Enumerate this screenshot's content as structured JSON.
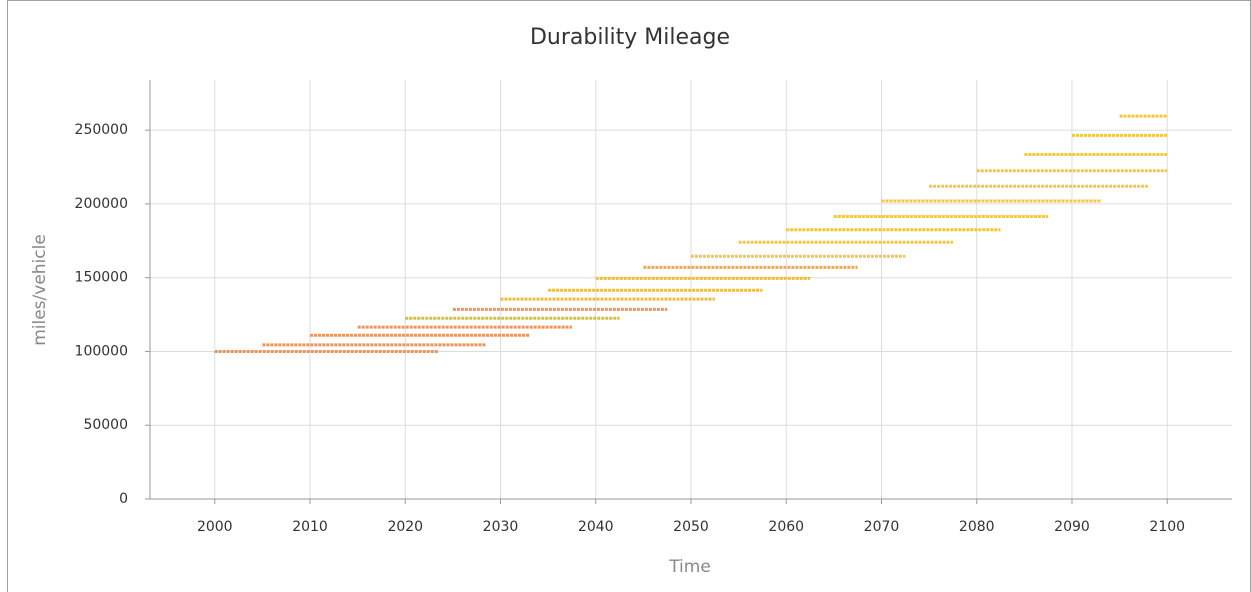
{
  "chart_data": {
    "type": "line",
    "title": "Durability Mileage",
    "x_label": "Time",
    "y_label": "miles/vehicle",
    "xlim": [
      1993.2,
      2106.8
    ],
    "ylim": [
      0,
      284000
    ],
    "xticks": [
      2000,
      2010,
      2020,
      2030,
      2040,
      2050,
      2060,
      2070,
      2080,
      2090,
      2100
    ],
    "yticks": [
      0,
      50000,
      100000,
      150000,
      200000,
      250000
    ],
    "grid": true,
    "series": [
      {
        "color": "#f0935a",
        "x": [
          2000,
          2023.5
        ],
        "values": [
          100000,
          100000
        ]
      },
      {
        "color": "#f0935a",
        "x": [
          2005,
          2028.5
        ],
        "values": [
          104500,
          104500
        ]
      },
      {
        "color": "#f0935a",
        "x": [
          2010,
          2033
        ],
        "values": [
          111000,
          111000
        ]
      },
      {
        "color": "#f0935a",
        "x": [
          2015,
          2037.5
        ],
        "values": [
          116500,
          116500
        ]
      },
      {
        "color": "#d4c03a",
        "x": [
          2020,
          2042.5
        ],
        "values": [
          122500,
          122500
        ]
      },
      {
        "color": "#f0935a",
        "x": [
          2025,
          2047.5
        ],
        "values": [
          128500,
          128500
        ]
      },
      {
        "color": "#f0bc40",
        "x": [
          2030,
          2052.5
        ],
        "values": [
          135500,
          135500
        ]
      },
      {
        "color": "#f0bc40",
        "x": [
          2035,
          2057.5
        ],
        "values": [
          141500,
          141500
        ]
      },
      {
        "color": "#f0bc40",
        "x": [
          2040,
          2062.5
        ],
        "values": [
          149500,
          149500
        ]
      },
      {
        "color": "#f0a850",
        "x": [
          2045,
          2067.5
        ],
        "values": [
          157000,
          157000
        ]
      },
      {
        "color": "#f5c642",
        "x": [
          2050,
          2072.5
        ],
        "values": [
          164500,
          164500
        ]
      },
      {
        "color": "#f5c642",
        "x": [
          2055,
          2077.5
        ],
        "values": [
          174000,
          174000
        ]
      },
      {
        "color": "#f5c642",
        "x": [
          2060,
          2082.5
        ],
        "values": [
          182500,
          182500
        ]
      },
      {
        "color": "#f5c642",
        "x": [
          2065,
          2087.5
        ],
        "values": [
          191500,
          191500
        ]
      },
      {
        "color": "#f5c642",
        "x": [
          2070,
          2093
        ],
        "values": [
          202000,
          202000
        ]
      },
      {
        "color": "#f5c642",
        "x": [
          2075,
          2098
        ],
        "values": [
          212000,
          212000
        ]
      },
      {
        "color": "#f5c642",
        "x": [
          2080,
          2100
        ],
        "values": [
          222500,
          222500
        ]
      },
      {
        "color": "#f5c642",
        "x": [
          2085,
          2100
        ],
        "values": [
          233500,
          233500
        ]
      },
      {
        "color": "#f5c642",
        "x": [
          2090,
          2100
        ],
        "values": [
          246500,
          246500
        ]
      },
      {
        "color": "#f5c642",
        "x": [
          2095,
          2100
        ],
        "values": [
          259500,
          259500
        ]
      }
    ]
  }
}
